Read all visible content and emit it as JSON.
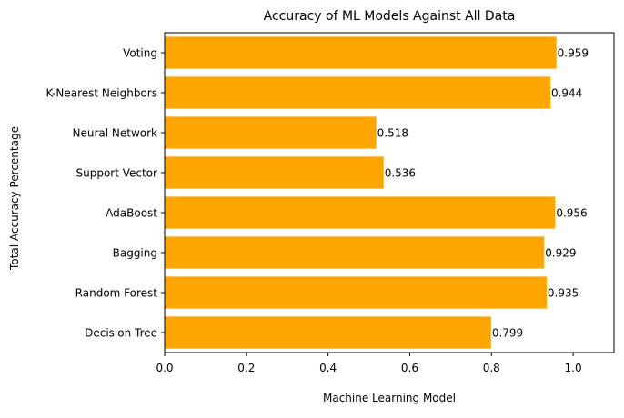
{
  "chart_data": {
    "type": "bar",
    "orientation": "horizontal",
    "title": "Accuracy of ML Models Against All Data",
    "xlabel": "Machine Learning Model",
    "ylabel": "Total Accuracy Percentage",
    "categories": [
      "Decision Tree",
      "Random Forest",
      "Bagging",
      "AdaBoost",
      "Support Vector",
      "Neural Network",
      "K-Nearest Neighbors",
      "Voting"
    ],
    "values": [
      0.799,
      0.935,
      0.929,
      0.956,
      0.536,
      0.518,
      0.944,
      0.959
    ],
    "data_labels": [
      "0.799",
      "0.935",
      "0.929",
      "0.956",
      "0.536",
      "0.518",
      "0.944",
      "0.959"
    ],
    "xlim": [
      0,
      1.1
    ],
    "x_ticks": [
      0.0,
      0.2,
      0.4,
      0.6,
      0.8,
      1.0
    ],
    "x_tick_labels": [
      "0.0",
      "0.2",
      "0.4",
      "0.6",
      "0.8",
      "1.0"
    ],
    "bar_color": "#ffa500",
    "grid": false,
    "legend": "none"
  }
}
